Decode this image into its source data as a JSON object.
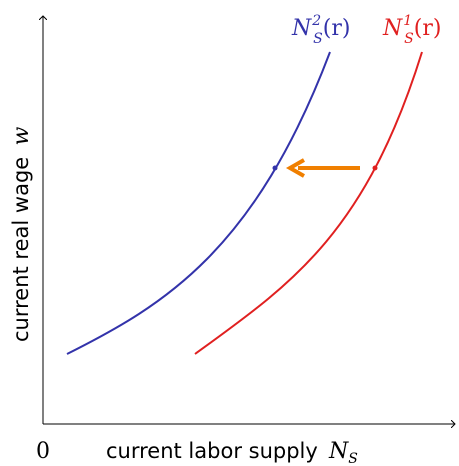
{
  "axes": {
    "origin_label": "0",
    "x_label": "current labor supply",
    "x_symbol": "N",
    "x_symbol_sub": "S",
    "y_label": "current real wage",
    "y_symbol": "w"
  },
  "curves": [
    {
      "id": "supply-2",
      "label_main": "N",
      "label_sub": "S",
      "label_sup": "2",
      "label_arg": "(r)",
      "color": "#3333aa"
    },
    {
      "id": "supply-1",
      "label_main": "N",
      "label_sub": "S",
      "label_sup": "1",
      "label_arg": "(r)",
      "color": "#e02020"
    }
  ],
  "shift_arrow": {
    "color": "#f07f00",
    "direction": "left"
  }
}
